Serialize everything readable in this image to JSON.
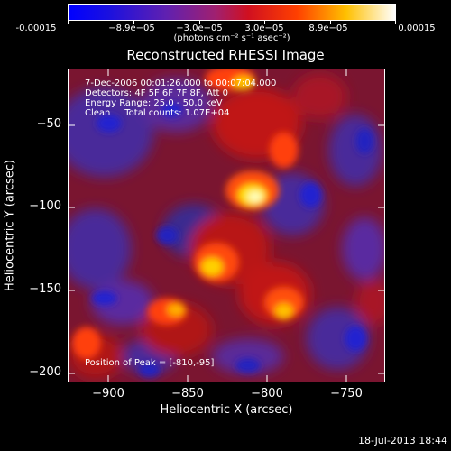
{
  "colorbar": {
    "tick_labels": [
      "-0.00015",
      "−8.9e−05",
      "−3.0e−05",
      "3.0e−05",
      "8.9e−05",
      "0.00015"
    ],
    "units": "(photons cm⁻² s⁻¹ asec⁻²)",
    "min": -0.00015,
    "max": 0.00015
  },
  "title": "Reconstructed RHESSI Image",
  "info": {
    "time_range": "7-Dec-2006 00:01:26.000 to 00:07:04.000",
    "detectors": "Detectors: 4F 5F 6F 7F 8F, Att 0",
    "energy_range": "Energy Range: 25.0 - 50.0 keV",
    "clean": "Clean     Total counts: 1.07E+04",
    "peak": "Position of Peak = [-810,-95]"
  },
  "axes": {
    "xlabel": "Heliocentric X (arcsec)",
    "ylabel": "Heliocentric Y (arcsec)",
    "xticks": [
      "−900",
      "−850",
      "−800",
      "−750"
    ],
    "yticks": [
      "−50",
      "−100",
      "−150",
      "−200"
    ],
    "xlim": [
      -925,
      -725
    ],
    "ylim": [
      -208,
      -22
    ]
  },
  "timestamp": "18-Jul-2013 18:44"
}
